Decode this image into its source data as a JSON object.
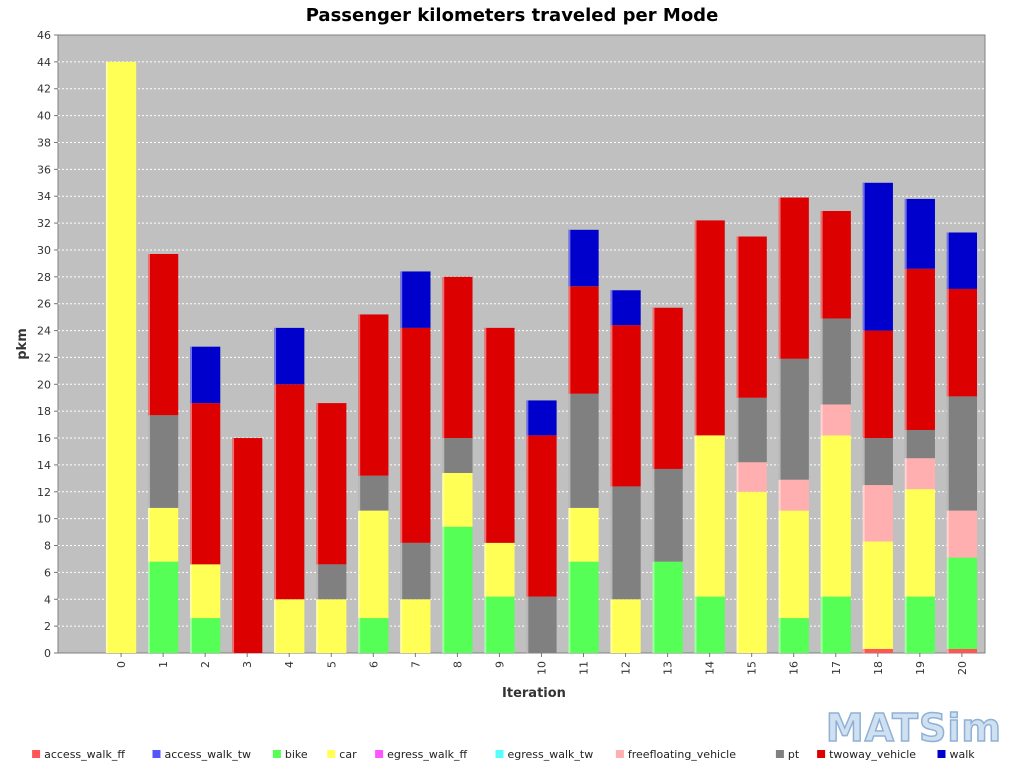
{
  "chart_data": {
    "type": "bar",
    "stacked": true,
    "title": "Passenger kilometers traveled per Mode",
    "xlabel": "Iteration",
    "ylabel": "pkm",
    "ylim": [
      0,
      46
    ],
    "yticks": [
      0,
      2,
      4,
      6,
      8,
      10,
      12,
      14,
      16,
      18,
      20,
      22,
      24,
      26,
      28,
      30,
      32,
      34,
      36,
      38,
      40,
      42,
      44,
      46
    ],
    "grid": true,
    "legend_position": "bottom",
    "categories": [
      "0",
      "1",
      "2",
      "3",
      "4",
      "5",
      "6",
      "7",
      "8",
      "9",
      "10",
      "11",
      "12",
      "13",
      "14",
      "15",
      "16",
      "17",
      "18",
      "19",
      "20"
    ],
    "series": [
      {
        "name": "access_walk_ff",
        "color": "#ff5555",
        "values": [
          0,
          0,
          0,
          0,
          0,
          0,
          0,
          0,
          0,
          0,
          0,
          0,
          0,
          0,
          0,
          0,
          0,
          0,
          0.3,
          0,
          0.3
        ]
      },
      {
        "name": "access_walk_tw",
        "color": "#5555ff",
        "values": [
          0,
          0,
          0,
          0,
          0,
          0,
          0,
          0,
          0,
          0,
          0,
          0,
          0,
          0,
          0,
          0,
          0,
          0,
          0,
          0,
          0
        ]
      },
      {
        "name": "bike",
        "color": "#55ff55",
        "values": [
          0,
          6.8,
          2.6,
          0,
          0,
          0,
          2.6,
          0,
          9.4,
          4.2,
          0,
          6.8,
          0,
          6.8,
          4.2,
          0,
          2.6,
          4.2,
          0,
          4.2,
          6.8
        ]
      },
      {
        "name": "car",
        "color": "#ffff55",
        "values": [
          44,
          4,
          4,
          0,
          4,
          4,
          8,
          4,
          4,
          4,
          0,
          4,
          4,
          0,
          12,
          12,
          8,
          12,
          8,
          8,
          0
        ]
      },
      {
        "name": "egress_walk_ff",
        "color": "#ff55ff",
        "values": [
          0,
          0,
          0,
          0,
          0,
          0,
          0,
          0,
          0,
          0,
          0,
          0,
          0,
          0,
          0,
          0,
          0,
          0,
          0,
          0,
          0
        ]
      },
      {
        "name": "egress_walk_tw",
        "color": "#55ffff",
        "values": [
          0,
          0,
          0,
          0,
          0,
          0,
          0,
          0,
          0,
          0,
          0,
          0,
          0,
          0,
          0,
          0,
          0,
          0,
          0,
          0,
          0
        ]
      },
      {
        "name": "freefloating_vehicle",
        "color": "#ffafaf",
        "values": [
          0,
          0,
          0,
          0,
          0,
          0,
          0,
          0,
          0,
          0,
          0,
          0,
          0,
          0,
          0,
          2.2,
          2.3,
          2.3,
          4.2,
          2.3,
          3.5
        ]
      },
      {
        "name": "pt",
        "color": "#808080",
        "values": [
          0,
          6.9,
          0,
          0,
          0,
          2.6,
          2.6,
          4.2,
          2.6,
          0,
          4.2,
          8.5,
          8.4,
          6.9,
          0,
          4.8,
          9.0,
          6.4,
          3.5,
          2.1,
          8.5
        ]
      },
      {
        "name": "twoway_vehicle",
        "color": "#dd0000",
        "values": [
          0,
          12,
          12,
          16,
          16,
          12,
          12,
          16,
          12,
          16,
          12,
          8,
          12,
          12,
          16,
          12,
          12,
          8,
          8,
          12,
          8
        ]
      },
      {
        "name": "walk",
        "color": "#0000cc",
        "values": [
          0,
          0,
          4.2,
          0,
          4.2,
          0,
          0,
          4.2,
          0,
          0,
          2.6,
          4.2,
          2.6,
          0,
          0,
          0,
          0,
          0,
          11,
          5.2,
          4.2
        ]
      }
    ]
  },
  "logo": {
    "text": "MATSim"
  }
}
